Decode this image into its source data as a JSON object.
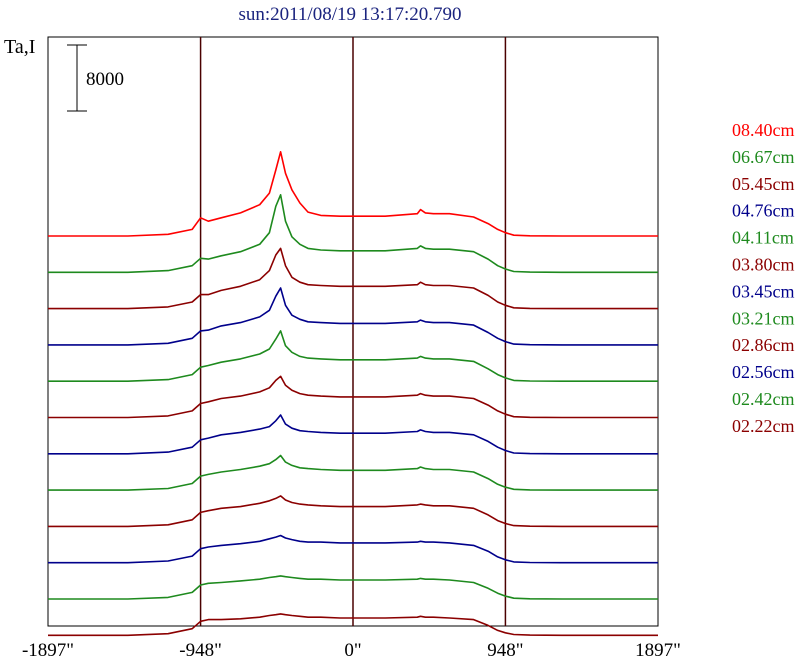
{
  "chart_data": {
    "type": "line",
    "title": "sun:2011/08/19 13:17:20.790",
    "ylabel": "Ta,I",
    "scale_bar_label": "8000",
    "xlabel": "",
    "xlim": [
      -1897,
      1897
    ],
    "x_ticks": [
      -1897,
      -948,
      0,
      948,
      1897
    ],
    "x_tick_labels": [
      "-1897\"",
      "-948\"",
      "0\"",
      "948\"",
      "1897\""
    ],
    "vertical_lines_at": [
      -948,
      0,
      948
    ],
    "grid": false,
    "legend_position": "right",
    "series": [
      {
        "name": "08.40cm",
        "color": "#ff0000",
        "baseline": 0,
        "x": [
          -1897,
          -1400,
          -1150,
          -1000,
          -948,
          -900,
          -820,
          -700,
          -580,
          -520,
          -480,
          -450,
          -420,
          -380,
          -330,
          -280,
          -200,
          -80,
          0,
          200,
          400,
          420,
          450,
          500,
          600,
          750,
          840,
          900,
          948,
          1000,
          1100,
          1300,
          1897
        ],
        "y": [
          0,
          0,
          200,
          800,
          2200,
          1800,
          2200,
          2800,
          3800,
          5200,
          8000,
          10200,
          7600,
          5600,
          4000,
          2900,
          2500,
          2400,
          2400,
          2400,
          2700,
          3200,
          2800,
          2700,
          2700,
          2300,
          1500,
          800,
          400,
          100,
          30,
          0,
          0
        ]
      },
      {
        "name": "06.67cm",
        "color": "#1e8a1e",
        "baseline": -4400,
        "x": [
          -1897,
          -1400,
          -1150,
          -1000,
          -948,
          -900,
          -820,
          -700,
          -580,
          -520,
          -480,
          -450,
          -420,
          -380,
          -330,
          -280,
          -200,
          -80,
          0,
          200,
          400,
          420,
          450,
          500,
          600,
          750,
          840,
          900,
          948,
          1000,
          1100,
          1300,
          1897
        ],
        "y": [
          0,
          0,
          200,
          800,
          1700,
          1600,
          2000,
          2500,
          3400,
          4800,
          8000,
          9400,
          6200,
          4300,
          3400,
          2900,
          2700,
          2600,
          2600,
          2600,
          2900,
          3200,
          2900,
          2800,
          2800,
          2500,
          1600,
          800,
          400,
          100,
          30,
          0,
          0
        ]
      },
      {
        "name": "05.45cm",
        "color": "#8b0000",
        "baseline": -8800,
        "x": [
          -1897,
          -1400,
          -1150,
          -1000,
          -948,
          -900,
          -820,
          -700,
          -580,
          -520,
          -480,
          -450,
          -420,
          -380,
          -330,
          -280,
          -200,
          -80,
          0,
          200,
          400,
          420,
          450,
          500,
          600,
          750,
          840,
          900,
          948,
          1000,
          1100,
          1300,
          1897
        ],
        "y": [
          0,
          0,
          200,
          800,
          1700,
          1700,
          2200,
          2700,
          3500,
          4600,
          6500,
          7300,
          5200,
          3800,
          3200,
          2900,
          2800,
          2700,
          2700,
          2700,
          2900,
          3200,
          2900,
          2800,
          2800,
          2500,
          1600,
          800,
          400,
          100,
          30,
          0,
          0
        ]
      },
      {
        "name": "04.76cm",
        "color": "#00008b",
        "baseline": -13200,
        "x": [
          -1897,
          -1400,
          -1150,
          -1000,
          -948,
          -900,
          -820,
          -700,
          -580,
          -520,
          -480,
          -450,
          -420,
          -380,
          -330,
          -280,
          -200,
          -80,
          0,
          200,
          400,
          420,
          450,
          500,
          600,
          750,
          840,
          900,
          948,
          1000,
          1100,
          1300,
          1897
        ],
        "y": [
          0,
          0,
          200,
          800,
          1700,
          1800,
          2300,
          2700,
          3400,
          4200,
          5900,
          6900,
          4800,
          3600,
          3100,
          2800,
          2700,
          2600,
          2600,
          2600,
          2800,
          3000,
          2800,
          2700,
          2700,
          2400,
          1500,
          800,
          400,
          100,
          30,
          0,
          0
        ]
      },
      {
        "name": "04.11cm",
        "color": "#1e8a1e",
        "baseline": -17600,
        "x": [
          -1897,
          -1400,
          -1150,
          -1000,
          -948,
          -900,
          -820,
          -700,
          -580,
          -520,
          -480,
          -450,
          -420,
          -380,
          -330,
          -280,
          -200,
          -80,
          0,
          200,
          400,
          420,
          450,
          500,
          600,
          750,
          840,
          900,
          948,
          1000,
          1100,
          1300,
          1897
        ],
        "y": [
          0,
          0,
          200,
          800,
          1700,
          1900,
          2300,
          2700,
          3300,
          3900,
          5100,
          6100,
          4300,
          3500,
          3000,
          2800,
          2700,
          2600,
          2600,
          2600,
          2800,
          3000,
          2800,
          2700,
          2700,
          2400,
          1500,
          800,
          400,
          100,
          30,
          0,
          0
        ]
      },
      {
        "name": "03.80cm",
        "color": "#8b0000",
        "baseline": -22000,
        "x": [
          -1897,
          -1400,
          -1150,
          -1000,
          -948,
          -900,
          -820,
          -700,
          -580,
          -520,
          -480,
          -450,
          -420,
          -380,
          -330,
          -280,
          -200,
          -80,
          0,
          200,
          400,
          420,
          450,
          500,
          600,
          750,
          840,
          900,
          948,
          1000,
          1100,
          1300,
          1897
        ],
        "y": [
          0,
          0,
          200,
          800,
          1700,
          1900,
          2300,
          2600,
          3100,
          3600,
          4500,
          5000,
          3900,
          3300,
          2900,
          2700,
          2600,
          2500,
          2500,
          2500,
          2700,
          2900,
          2700,
          2600,
          2600,
          2300,
          1500,
          800,
          400,
          100,
          30,
          0,
          0
        ]
      },
      {
        "name": "03.45cm",
        "color": "#00008b",
        "baseline": -26400,
        "x": [
          -1897,
          -1400,
          -1150,
          -1000,
          -948,
          -900,
          -820,
          -700,
          -580,
          -520,
          -480,
          -450,
          -420,
          -380,
          -330,
          -280,
          -200,
          -80,
          0,
          200,
          400,
          420,
          450,
          500,
          600,
          750,
          840,
          900,
          948,
          1000,
          1100,
          1300,
          1897
        ],
        "y": [
          0,
          0,
          200,
          800,
          1700,
          1900,
          2300,
          2600,
          3000,
          3300,
          4000,
          4700,
          3600,
          3100,
          2800,
          2700,
          2600,
          2500,
          2500,
          2500,
          2700,
          2900,
          2700,
          2600,
          2600,
          2300,
          1500,
          800,
          400,
          100,
          30,
          0,
          0
        ]
      },
      {
        "name": "03.21cm",
        "color": "#1e8a1e",
        "baseline": -30800,
        "x": [
          -1897,
          -1400,
          -1150,
          -1000,
          -948,
          -900,
          -820,
          -700,
          -580,
          -520,
          -480,
          -450,
          -420,
          -380,
          -330,
          -280,
          -200,
          -80,
          0,
          200,
          400,
          420,
          450,
          500,
          600,
          750,
          840,
          900,
          948,
          1000,
          1100,
          1300,
          1897
        ],
        "y": [
          0,
          0,
          200,
          800,
          1700,
          1900,
          2200,
          2500,
          2900,
          3200,
          3700,
          4200,
          3400,
          3000,
          2700,
          2600,
          2500,
          2400,
          2400,
          2400,
          2600,
          2800,
          2600,
          2500,
          2500,
          2200,
          1400,
          700,
          350,
          100,
          30,
          0,
          0
        ]
      },
      {
        "name": "02.86cm",
        "color": "#8b0000",
        "baseline": -35200,
        "x": [
          -1897,
          -1400,
          -1150,
          -1000,
          -948,
          -900,
          -820,
          -700,
          -580,
          -520,
          -480,
          -450,
          -420,
          -380,
          -330,
          -280,
          -200,
          -80,
          0,
          200,
          400,
          420,
          450,
          500,
          600,
          750,
          840,
          900,
          948,
          1000,
          1100,
          1300,
          1897
        ],
        "y": [
          0,
          0,
          200,
          800,
          1700,
          1900,
          2200,
          2400,
          2800,
          3100,
          3400,
          3700,
          3200,
          2900,
          2700,
          2600,
          2500,
          2400,
          2400,
          2400,
          2600,
          2700,
          2600,
          2500,
          2500,
          2200,
          1400,
          700,
          350,
          100,
          30,
          0,
          0
        ]
      },
      {
        "name": "02.56cm",
        "color": "#00008b",
        "baseline": -39600,
        "x": [
          -1897,
          -1400,
          -1150,
          -1000,
          -948,
          -900,
          -820,
          -700,
          -580,
          -520,
          -480,
          -450,
          -420,
          -380,
          -330,
          -280,
          -200,
          -80,
          0,
          200,
          400,
          420,
          450,
          500,
          600,
          750,
          840,
          900,
          948,
          1000,
          1100,
          1300,
          1897
        ],
        "y": [
          0,
          0,
          200,
          800,
          1700,
          1900,
          2100,
          2300,
          2600,
          2900,
          3100,
          3300,
          3000,
          2800,
          2600,
          2500,
          2500,
          2400,
          2400,
          2400,
          2500,
          2600,
          2500,
          2500,
          2400,
          2100,
          1400,
          700,
          350,
          100,
          30,
          0,
          0
        ]
      },
      {
        "name": "02.42cm",
        "color": "#1e8a1e",
        "baseline": -44000,
        "x": [
          -1897,
          -1400,
          -1150,
          -1000,
          -948,
          -900,
          -820,
          -700,
          -580,
          -520,
          -480,
          -450,
          -420,
          -380,
          -330,
          -280,
          -200,
          -80,
          0,
          200,
          400,
          420,
          450,
          500,
          600,
          750,
          840,
          900,
          948,
          1000,
          1100,
          1300,
          1897
        ],
        "y": [
          0,
          0,
          200,
          800,
          1700,
          1900,
          2000,
          2200,
          2400,
          2600,
          2700,
          2800,
          2700,
          2600,
          2500,
          2400,
          2400,
          2300,
          2300,
          2300,
          2400,
          2500,
          2400,
          2400,
          2300,
          2000,
          1300,
          700,
          350,
          100,
          30,
          0,
          0
        ]
      },
      {
        "name": "02.22cm",
        "color": "#8b0000",
        "baseline": -48400,
        "x": [
          -1897,
          -1400,
          -1150,
          -1000,
          -948,
          -900,
          -820,
          -700,
          -580,
          -520,
          -480,
          -450,
          -420,
          -380,
          -330,
          -280,
          -200,
          -80,
          0,
          200,
          400,
          420,
          450,
          500,
          600,
          750,
          840,
          900,
          948,
          1000,
          1100,
          1300,
          1897
        ],
        "y": [
          0,
          0,
          200,
          800,
          1700,
          1900,
          1900,
          2000,
          2200,
          2400,
          2500,
          2600,
          2500,
          2400,
          2300,
          2200,
          2200,
          2100,
          2100,
          2100,
          2200,
          2300,
          2200,
          2200,
          2100,
          1900,
          1200,
          600,
          300,
          100,
          30,
          0,
          0
        ]
      }
    ]
  }
}
